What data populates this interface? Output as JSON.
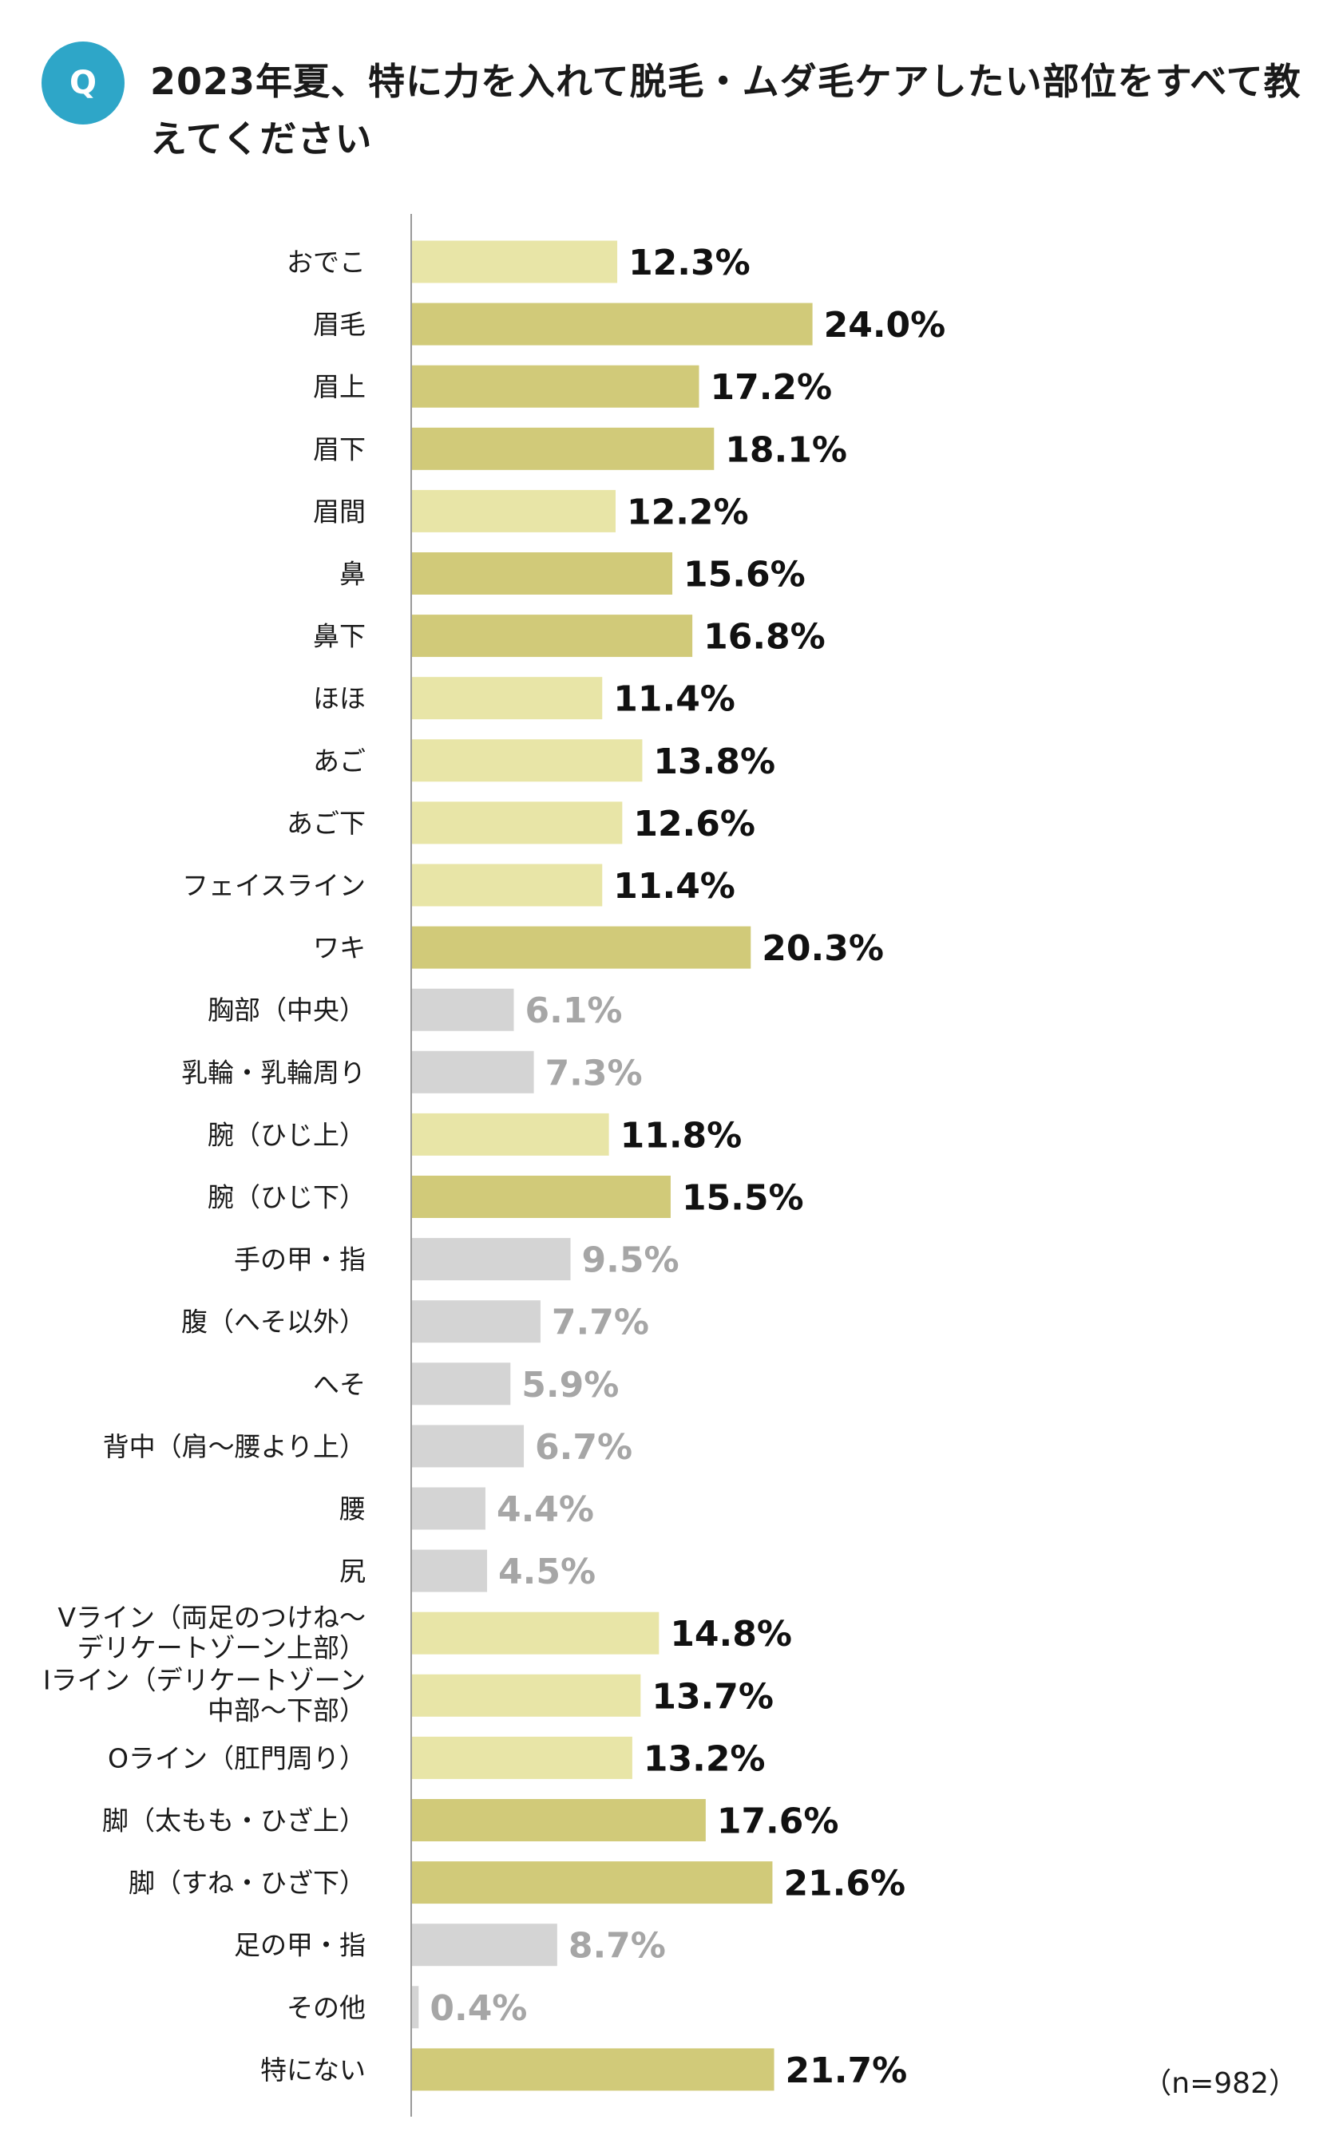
{
  "header": {
    "badge": "Q",
    "title": "2023年夏、特に力を入れて脱毛・ムダ毛ケアしたい部位をすべて教えてください"
  },
  "chart_data": {
    "type": "bar",
    "orientation": "horizontal",
    "unit": "%",
    "note": "（n=982）",
    "xlim": [
      0,
      40
    ],
    "colors": {
      "high": "#d1ca79",
      "mid": "#e8e5a7",
      "low": "#d4d4d4",
      "value_dark": "#111111",
      "value_gray": "#a6a6a6",
      "axis": "#9a9a9a"
    },
    "categories": [
      [
        "おでこ"
      ],
      [
        "眉毛"
      ],
      [
        "眉上"
      ],
      [
        "眉下"
      ],
      [
        "眉間"
      ],
      [
        "鼻"
      ],
      [
        "鼻下"
      ],
      [
        "ほほ"
      ],
      [
        "あご"
      ],
      [
        "あご下"
      ],
      [
        "フェイスライン"
      ],
      [
        "ワキ"
      ],
      [
        "胸部（中央）"
      ],
      [
        "乳輪・乳輪周り"
      ],
      [
        "腕（ひじ上）"
      ],
      [
        "腕（ひじ下）"
      ],
      [
        "手の甲・指"
      ],
      [
        "腹（へそ以外）"
      ],
      [
        "へそ"
      ],
      [
        "背中（肩〜腰より上）"
      ],
      [
        "腰"
      ],
      [
        "尻"
      ],
      [
        "Vライン（両足のつけね〜",
        "デリケートゾーン上部）"
      ],
      [
        "Iライン（デリケートゾーン",
        "中部〜下部）"
      ],
      [
        "Oライン（肛門周り）"
      ],
      [
        "脚（太もも・ひざ上）"
      ],
      [
        "脚（すね・ひざ下）"
      ],
      [
        "足の甲・指"
      ],
      [
        "その他"
      ],
      [
        "特にない"
      ]
    ],
    "values": [
      12.3,
      24.0,
      17.2,
      18.1,
      12.2,
      15.6,
      16.8,
      11.4,
      13.8,
      12.6,
      11.4,
      20.3,
      6.1,
      7.3,
      11.8,
      15.5,
      9.5,
      7.7,
      5.9,
      6.7,
      4.4,
      4.5,
      14.8,
      13.7,
      13.2,
      17.6,
      21.6,
      8.7,
      0.4,
      21.7
    ],
    "value_labels": [
      "12.3%",
      "24.0%",
      "17.2%",
      "18.1%",
      "12.2%",
      "15.6%",
      "16.8%",
      "11.4%",
      "13.8%",
      "12.6%",
      "11.4%",
      "20.3%",
      "6.1%",
      "7.3%",
      "11.8%",
      "15.5%",
      "9.5%",
      "7.7%",
      "5.9%",
      "6.7%",
      "4.4%",
      "4.5%",
      "14.8%",
      "13.7%",
      "13.2%",
      "17.6%",
      "21.6%",
      "8.7%",
      "0.4%",
      "21.7%"
    ]
  }
}
